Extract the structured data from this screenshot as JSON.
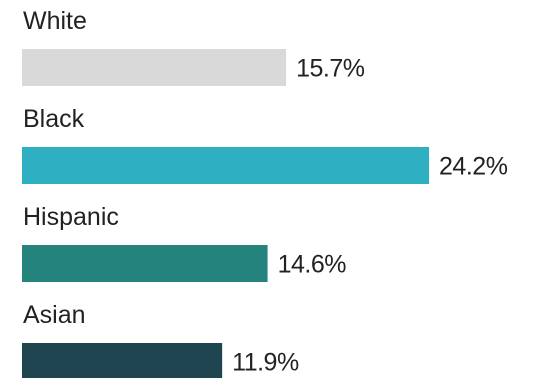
{
  "chart_data": {
    "type": "bar",
    "orientation": "horizontal",
    "categories": [
      "White",
      "Black",
      "Hispanic",
      "Asian"
    ],
    "values": [
      15.7,
      24.2,
      14.6,
      11.9
    ],
    "value_labels": [
      "15.7%",
      "24.2%",
      "14.6%",
      "11.9%"
    ],
    "bar_colors": [
      "#d9d9d9",
      "#2fb0c2",
      "#24837d",
      "#1f4550"
    ],
    "title": "",
    "xlabel": "",
    "ylabel": "",
    "grid": false,
    "legend": "none"
  }
}
